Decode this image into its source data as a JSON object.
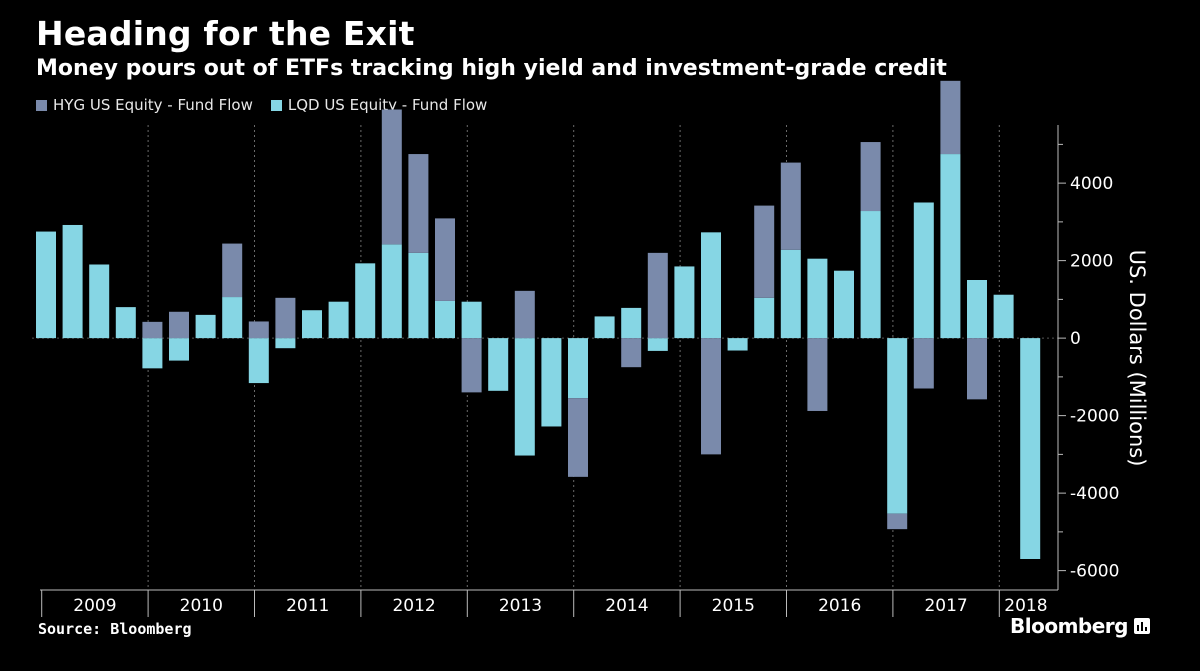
{
  "chart_data": {
    "type": "bar",
    "title": "Heading for the Exit",
    "subtitle": "Money pours out of ETFs tracking high yield and investment-grade credit",
    "ylabel": "US. Dollars (Millions)",
    "ylim": [
      -6500,
      5500
    ],
    "yticks": [
      4000,
      2000,
      0,
      -2000,
      -4000,
      -6000
    ],
    "ytick_labels": [
      "4000",
      "2000",
      "0",
      "-2000",
      "-4000",
      "-6000"
    ],
    "years": [
      "2009",
      "2010",
      "2011",
      "2012",
      "2013",
      "2014",
      "2015",
      "2016",
      "2017",
      "2018"
    ],
    "year_quarter_counts": [
      4,
      4,
      4,
      4,
      4,
      4,
      4,
      4,
      4,
      2
    ],
    "quarters": [
      "2009 Q1",
      "2009 Q2",
      "2009 Q3",
      "2009 Q4",
      "2010 Q1",
      "2010 Q2",
      "2010 Q3",
      "2010 Q4",
      "2011 Q1",
      "2011 Q2",
      "2011 Q3",
      "2011 Q4",
      "2012 Q1",
      "2012 Q2",
      "2012 Q3",
      "2012 Q4",
      "2013 Q1",
      "2013 Q2",
      "2013 Q3",
      "2013 Q4",
      "2014 Q1",
      "2014 Q2",
      "2014 Q3",
      "2014 Q4",
      "2015 Q1",
      "2015 Q2",
      "2015 Q3",
      "2015 Q4",
      "2016 Q1",
      "2016 Q2",
      "2016 Q3",
      "2016 Q4",
      "2017 Q1",
      "2017 Q2",
      "2017 Q3",
      "2017 Q4",
      "2018 Q1",
      "2018 Q2"
    ],
    "series": [
      {
        "name": "HYG US Equity - Fund Flow",
        "color": "#7a8aab",
        "values": [
          0,
          0,
          0,
          0,
          420,
          680,
          0,
          1380,
          430,
          1040,
          0,
          0,
          0,
          3480,
          2550,
          2130,
          -1400,
          0,
          1220,
          0,
          -2030,
          0,
          -750,
          2200,
          0,
          -3000,
          0,
          2380,
          2250,
          -1880,
          0,
          1780,
          -400,
          -1300,
          1890,
          -1580,
          0,
          0
        ]
      },
      {
        "name": "LQD US Equity - Fund Flow",
        "color": "#86d6e4",
        "values": [
          2750,
          2920,
          1900,
          800,
          -780,
          -580,
          600,
          1060,
          -1160,
          -260,
          720,
          940,
          1930,
          2420,
          2200,
          960,
          940,
          -1360,
          -3030,
          -2280,
          -1550,
          560,
          780,
          -330,
          1850,
          2730,
          -320,
          1040,
          2280,
          2050,
          1740,
          3280,
          -4530,
          3500,
          4750,
          1500,
          1120,
          -5700
        ]
      }
    ]
  },
  "source": "Source: Bloomberg",
  "brand": "Bloomberg"
}
